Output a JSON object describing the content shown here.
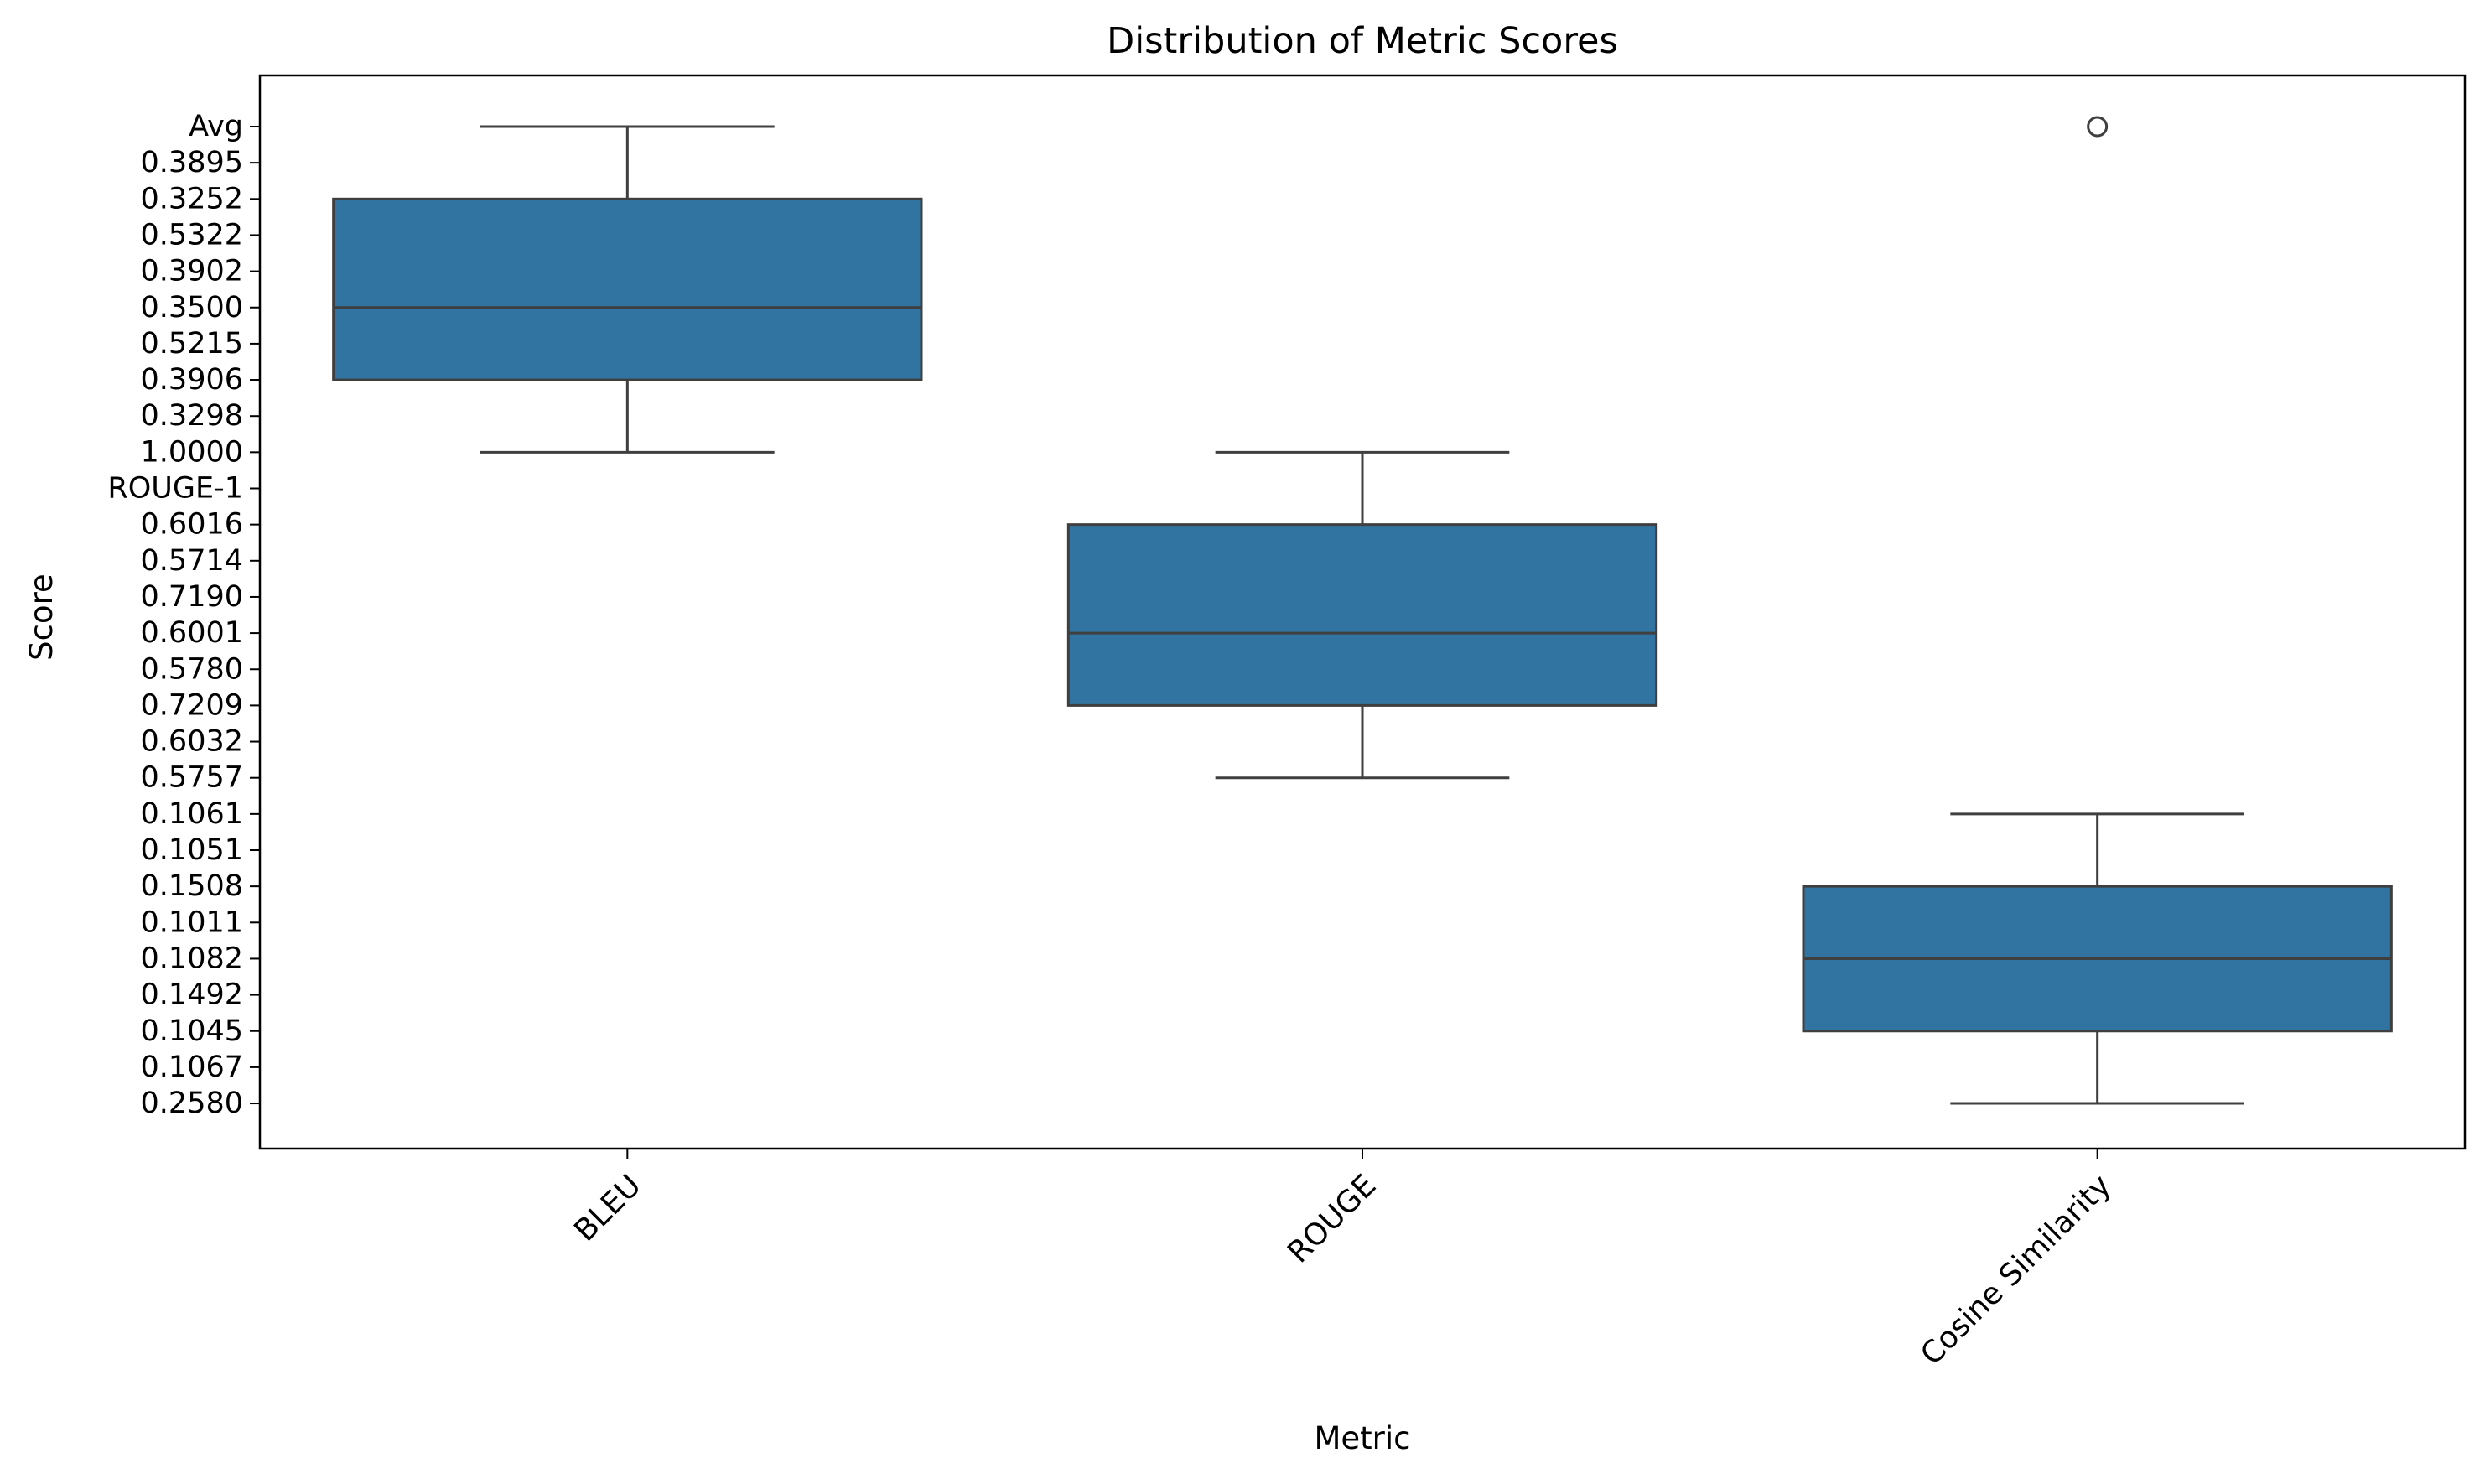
{
  "chart_data": {
    "type": "box",
    "title": "Distribution of Metric Scores",
    "xlabel": "Metric",
    "ylabel": "Score",
    "categories": [
      "BLEU",
      "ROUGE",
      "Cosine Similarity"
    ],
    "y_categories": [
      "Avg",
      "0.3895",
      "0.3252",
      "0.5322",
      "0.3902",
      "0.3500",
      "0.5215",
      "0.3906",
      "0.3298",
      "1.0000",
      "ROUGE-1",
      "0.6016",
      "0.5714",
      "0.7190",
      "0.6001",
      "0.5780",
      "0.7209",
      "0.6032",
      "0.5757",
      "0.1061",
      "0.1051",
      "0.1508",
      "0.1011",
      "0.1082",
      "0.1492",
      "0.1045",
      "0.1067",
      "0.2580"
    ],
    "boxes": [
      {
        "category": "BLEU",
        "whisker_low": "Avg",
        "q1": "0.3252",
        "median": "0.3500",
        "q3": "0.3906",
        "whisker_high": "1.0000",
        "outliers": []
      },
      {
        "category": "ROUGE",
        "whisker_low": "1.0000",
        "q1": "0.6016",
        "median": "0.6001",
        "q3": "0.7209",
        "whisker_high": "0.5757",
        "outliers": []
      },
      {
        "category": "Cosine Similarity",
        "whisker_low": "0.1061",
        "q1": "0.1508",
        "median": "0.1082",
        "q3": "0.1045",
        "whisker_high": "0.2580",
        "outliers": [
          "Avg"
        ]
      }
    ],
    "grid": false,
    "legend": "none",
    "x_tick_rotation": 45,
    "box_color": "#3274a1",
    "line_color": "#3f3f3f"
  }
}
